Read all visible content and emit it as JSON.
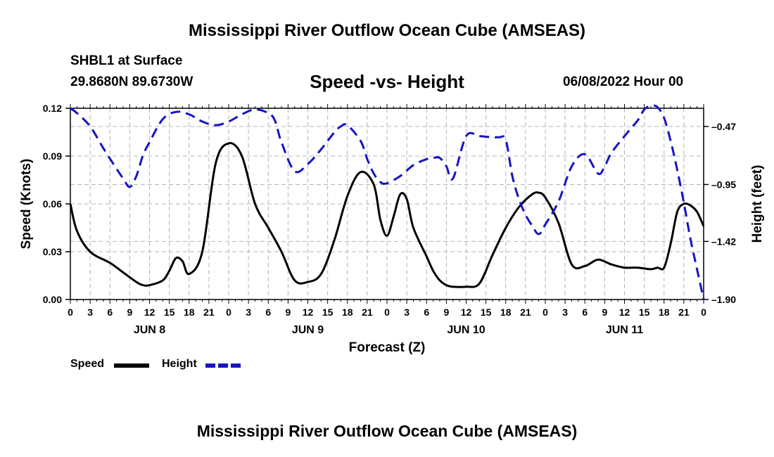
{
  "page": {
    "title": "Mississippi River Outflow Ocean Cube (AMSEAS)",
    "station": "SHBL1 at Surface",
    "coords": "29.8680N  89.6730W",
    "date_label": "06/08/2022 Hour 00",
    "footer_title": "Mississippi River Outflow Ocean Cube (AMSEAS)"
  },
  "legend": {
    "speed_label": "Speed",
    "height_label": "Height"
  },
  "colors": {
    "speed": "#000000",
    "height": "#1414c8",
    "grid": "#b4b4b4"
  },
  "chart_data": {
    "type": "line",
    "title": "Speed -vs- Height",
    "xlabel": "Forecast (Z)",
    "ylabel": "Speed (Knots)",
    "y2label": "Height (feet)",
    "xlim": [
      0,
      96
    ],
    "ylim": [
      0,
      0.12
    ],
    "y2lim": [
      -1.9,
      -0.32
    ],
    "yticks": [
      "0.00",
      "0.03",
      "0.06",
      "0.09",
      "0.12"
    ],
    "y2ticks": [
      "-0.47",
      "-0.95",
      "-1.42",
      "-1.90"
    ],
    "x_tick_labels": [
      "0",
      "3",
      "6",
      "9",
      "12",
      "15",
      "18",
      "21",
      "0",
      "3",
      "6",
      "9",
      "12",
      "15",
      "18",
      "21",
      "0",
      "3",
      "6",
      "9",
      "12",
      "15",
      "18",
      "21",
      "0",
      "3",
      "6",
      "9",
      "12",
      "15",
      "18",
      "21",
      "0"
    ],
    "day_labels": [
      "JUN 8",
      "JUN 9",
      "JUN 10",
      "JUN 11"
    ],
    "series": [
      {
        "name": "Speed",
        "axis": "left",
        "style": "solid",
        "x": [
          0,
          1,
          3,
          6,
          8,
          10,
          11,
          12,
          14,
          15,
          16,
          17,
          18,
          20,
          22,
          24,
          26,
          28,
          30,
          32,
          34,
          36,
          38,
          40,
          42,
          44,
          46,
          47,
          48,
          49,
          50,
          51,
          52,
          54,
          55,
          56,
          57,
          58,
          60,
          62,
          64,
          66,
          68,
          70,
          71,
          72,
          74,
          76,
          78,
          80,
          82,
          84,
          86,
          88,
          89,
          90,
          91,
          92,
          93,
          94,
          95,
          96
        ],
        "y": [
          0.06,
          0.043,
          0.03,
          0.023,
          0.017,
          0.011,
          0.009,
          0.009,
          0.012,
          0.018,
          0.026,
          0.024,
          0.016,
          0.03,
          0.085,
          0.098,
          0.09,
          0.06,
          0.045,
          0.03,
          0.012,
          0.011,
          0.016,
          0.037,
          0.065,
          0.08,
          0.072,
          0.05,
          0.04,
          0.052,
          0.066,
          0.063,
          0.045,
          0.027,
          0.018,
          0.012,
          0.009,
          0.008,
          0.008,
          0.01,
          0.028,
          0.045,
          0.058,
          0.066,
          0.067,
          0.064,
          0.048,
          0.022,
          0.021,
          0.025,
          0.022,
          0.02,
          0.02,
          0.019,
          0.02,
          0.02,
          0.035,
          0.055,
          0.06,
          0.059,
          0.055,
          0.046
        ]
      },
      {
        "name": "Height",
        "axis": "right",
        "style": "dashed",
        "x": [
          0,
          1,
          3,
          5,
          7,
          8,
          9,
          10,
          11,
          12,
          14,
          16,
          18,
          20,
          22,
          24,
          26,
          28,
          30,
          31,
          32,
          34,
          36,
          38,
          40,
          41,
          42,
          44,
          45,
          46,
          47,
          48,
          50,
          52,
          54,
          55,
          56,
          57,
          58,
          60,
          62,
          64,
          65,
          66,
          67,
          68,
          69,
          70,
          71,
          72,
          74,
          76,
          78,
          80,
          81,
          82,
          84,
          86,
          87,
          88,
          89,
          90,
          91,
          92,
          93,
          94,
          95,
          96
        ],
        "y": [
          -0.32,
          -0.36,
          -0.47,
          -0.65,
          -0.82,
          -0.9,
          -0.97,
          -0.88,
          -0.71,
          -0.6,
          -0.41,
          -0.35,
          -0.37,
          -0.43,
          -0.46,
          -0.43,
          -0.37,
          -0.33,
          -0.36,
          -0.42,
          -0.6,
          -0.84,
          -0.78,
          -0.66,
          -0.52,
          -0.47,
          -0.46,
          -0.59,
          -0.74,
          -0.86,
          -0.93,
          -0.94,
          -0.88,
          -0.79,
          -0.74,
          -0.73,
          -0.73,
          -0.8,
          -0.9,
          -0.55,
          -0.55,
          -0.56,
          -0.56,
          -0.58,
          -0.88,
          -1.07,
          -1.2,
          -1.29,
          -1.36,
          -1.28,
          -1.09,
          -0.8,
          -0.7,
          -0.86,
          -0.8,
          -0.69,
          -0.55,
          -0.42,
          -0.33,
          -0.3,
          -0.31,
          -0.4,
          -0.59,
          -0.83,
          -1.1,
          -1.4,
          -1.65,
          -1.9
        ]
      }
    ]
  }
}
